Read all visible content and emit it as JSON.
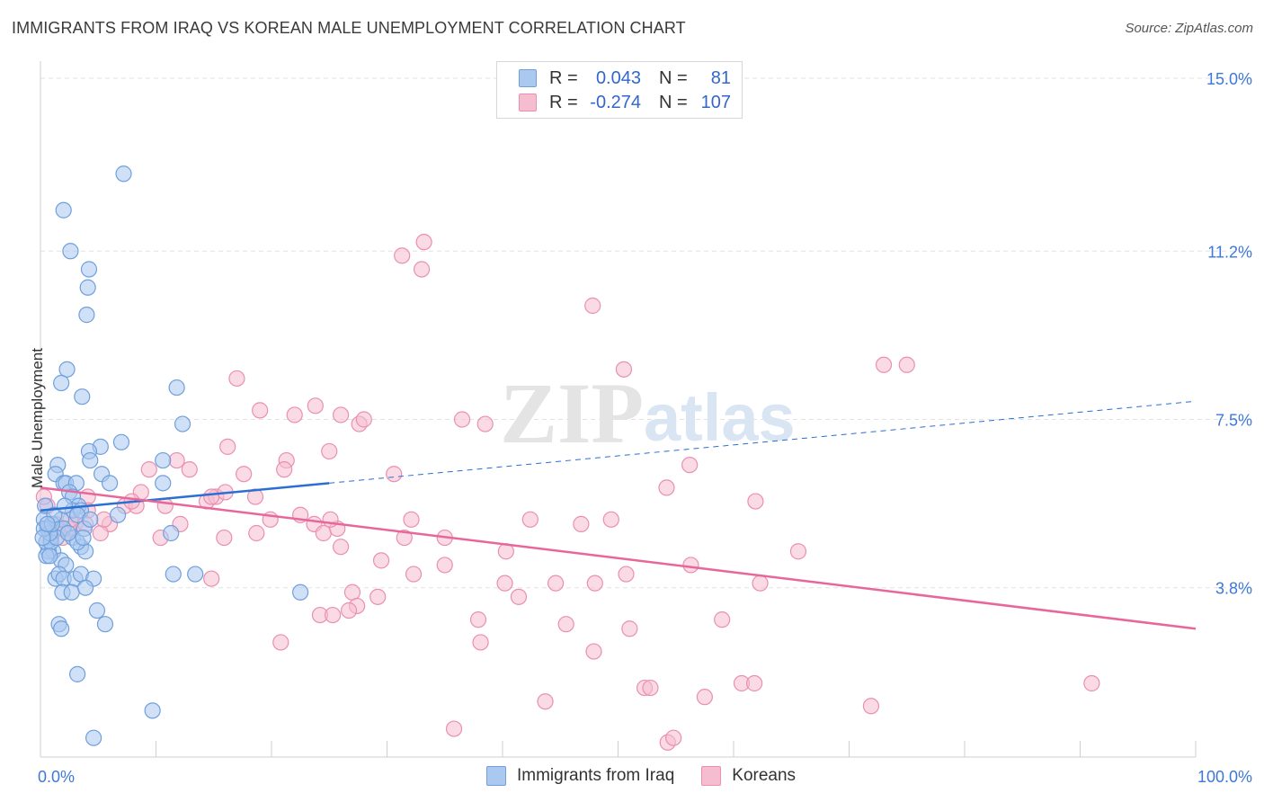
{
  "header": {
    "title": "IMMIGRANTS FROM IRAQ VS KOREAN MALE UNEMPLOYMENT CORRELATION CHART",
    "source": "Source: ZipAtlas.com"
  },
  "legend": {
    "series": [
      {
        "r_label": "R =",
        "r_value": "0.043",
        "n_label": "N =",
        "n_value": "81"
      },
      {
        "r_label": "R =",
        "r_value": "-0.274",
        "n_label": "N =",
        "n_value": "107"
      }
    ]
  },
  "bottom_legend": {
    "item1": "Immigrants from Iraq",
    "item2": "Koreans"
  },
  "watermark": {
    "zip": "ZIP",
    "atlas": "atlas"
  },
  "colors": {
    "blue_fill": "#aac8f0",
    "blue_stroke": "#6f9fdc",
    "blue_line": "#2a6fd1",
    "pink_fill": "#f6bdd0",
    "pink_stroke": "#ea8fb0",
    "pink_line": "#e8679a",
    "tick_label": "#3d78d8",
    "grid": "#e2e2e2"
  },
  "chart_data": {
    "type": "scatter",
    "title": "IMMIGRANTS FROM IRAQ VS KOREAN MALE UNEMPLOYMENT CORRELATION CHART",
    "xlabel": "",
    "ylabel": "Male Unemployment",
    "xlim": [
      0,
      100
    ],
    "ylim": [
      0,
      15.5
    ],
    "x_tick_labels": [
      "0.0%",
      "100.0%"
    ],
    "y_ticks": [
      3.8,
      7.5,
      11.2,
      15.0
    ],
    "y_tick_labels": [
      "3.8%",
      "7.5%",
      "11.2%",
      "15.0%"
    ],
    "grid": true,
    "legend_position": "top-center",
    "series": [
      {
        "name": "Immigrants from Iraq",
        "r": 0.043,
        "n": 81,
        "trend": {
          "x0": 0.0,
          "y0": 5.5,
          "x1": 25.0,
          "y1": 6.1,
          "dashed_to_x": 100.0,
          "dashed_to_y": 7.9
        },
        "points": [
          [
            7.2,
            12.9
          ],
          [
            2.0,
            12.1
          ],
          [
            2.6,
            11.2
          ],
          [
            4.2,
            10.8
          ],
          [
            4.1,
            10.4
          ],
          [
            4.0,
            9.8
          ],
          [
            2.3,
            8.6
          ],
          [
            1.8,
            8.3
          ],
          [
            3.6,
            8.0
          ],
          [
            11.8,
            8.2
          ],
          [
            12.3,
            7.4
          ],
          [
            7.0,
            7.0
          ],
          [
            5.2,
            6.9
          ],
          [
            4.2,
            6.8
          ],
          [
            4.3,
            6.6
          ],
          [
            10.6,
            6.6
          ],
          [
            1.5,
            6.5
          ],
          [
            1.3,
            6.3
          ],
          [
            5.3,
            6.3
          ],
          [
            2.0,
            6.1
          ],
          [
            2.2,
            6.1
          ],
          [
            3.1,
            6.1
          ],
          [
            6.0,
            6.1
          ],
          [
            10.6,
            6.1
          ],
          [
            2.5,
            5.9
          ],
          [
            2.8,
            5.8
          ],
          [
            3.3,
            5.6
          ],
          [
            2.8,
            5.5
          ],
          [
            3.5,
            5.5
          ],
          [
            3.2,
            5.4
          ],
          [
            1.8,
            5.3
          ],
          [
            6.7,
            5.4
          ],
          [
            0.3,
            5.3
          ],
          [
            0.6,
            5.1
          ],
          [
            2.0,
            5.1
          ],
          [
            3.8,
            5.1
          ],
          [
            4.3,
            5.3
          ],
          [
            2.8,
            4.9
          ],
          [
            0.9,
            4.9
          ],
          [
            1.1,
            4.6
          ],
          [
            3.5,
            4.7
          ],
          [
            1.8,
            4.4
          ],
          [
            2.2,
            4.3
          ],
          [
            1.3,
            4.0
          ],
          [
            0.7,
            4.6
          ],
          [
            0.5,
            4.8
          ],
          [
            0.9,
            4.8
          ],
          [
            1.4,
            4.9
          ],
          [
            0.8,
            5.0
          ],
          [
            1.6,
            4.1
          ],
          [
            2.0,
            4.0
          ],
          [
            3.0,
            4.0
          ],
          [
            3.5,
            4.1
          ],
          [
            4.6,
            4.0
          ],
          [
            11.3,
            5.0
          ],
          [
            11.5,
            4.1
          ],
          [
            13.4,
            4.1
          ],
          [
            3.9,
            4.6
          ],
          [
            3.2,
            4.8
          ],
          [
            0.3,
            5.1
          ],
          [
            0.5,
            4.5
          ],
          [
            1.9,
            3.7
          ],
          [
            2.7,
            3.7
          ],
          [
            3.9,
            3.8
          ],
          [
            4.9,
            3.3
          ],
          [
            5.6,
            3.0
          ],
          [
            1.6,
            3.0
          ],
          [
            1.8,
            2.9
          ],
          [
            22.5,
            3.7
          ],
          [
            3.2,
            1.9
          ],
          [
            9.7,
            1.1
          ],
          [
            4.6,
            0.5
          ],
          [
            1.0,
            5.2
          ],
          [
            0.4,
            5.6
          ],
          [
            0.2,
            4.9
          ],
          [
            1.2,
            5.4
          ],
          [
            2.4,
            5.0
          ],
          [
            0.8,
            4.5
          ],
          [
            0.6,
            5.2
          ],
          [
            3.7,
            4.9
          ],
          [
            2.1,
            5.6
          ]
        ]
      },
      {
        "name": "Koreans",
        "r": -0.274,
        "n": 107,
        "trend": {
          "x0": 0.0,
          "y0": 6.0,
          "x1": 100.0,
          "y1": 2.9
        },
        "points": [
          [
            33.2,
            11.4
          ],
          [
            31.3,
            11.1
          ],
          [
            33.0,
            10.8
          ],
          [
            47.8,
            10.0
          ],
          [
            73.0,
            8.7
          ],
          [
            75.0,
            8.7
          ],
          [
            50.5,
            8.6
          ],
          [
            17.0,
            8.4
          ],
          [
            19.0,
            7.7
          ],
          [
            23.8,
            7.8
          ],
          [
            22.0,
            7.6
          ],
          [
            26.0,
            7.6
          ],
          [
            27.6,
            7.4
          ],
          [
            28.0,
            7.5
          ],
          [
            36.5,
            7.5
          ],
          [
            38.5,
            7.4
          ],
          [
            16.2,
            6.9
          ],
          [
            25.0,
            6.8
          ],
          [
            21.3,
            6.6
          ],
          [
            11.8,
            6.6
          ],
          [
            12.9,
            6.4
          ],
          [
            9.4,
            6.4
          ],
          [
            17.6,
            6.3
          ],
          [
            21.1,
            6.4
          ],
          [
            30.6,
            6.3
          ],
          [
            56.2,
            6.5
          ],
          [
            54.2,
            6.0
          ],
          [
            8.7,
            5.9
          ],
          [
            4.1,
            5.8
          ],
          [
            14.4,
            5.7
          ],
          [
            15.2,
            5.8
          ],
          [
            14.8,
            5.8
          ],
          [
            16.0,
            5.9
          ],
          [
            18.6,
            5.8
          ],
          [
            61.9,
            5.7
          ],
          [
            10.8,
            5.6
          ],
          [
            7.3,
            5.6
          ],
          [
            8.3,
            5.6
          ],
          [
            4.1,
            5.5
          ],
          [
            19.9,
            5.3
          ],
          [
            23.7,
            5.2
          ],
          [
            32.1,
            5.3
          ],
          [
            42.4,
            5.3
          ],
          [
            49.4,
            5.3
          ],
          [
            46.8,
            5.2
          ],
          [
            12.1,
            5.2
          ],
          [
            6.0,
            5.2
          ],
          [
            3.0,
            5.2
          ],
          [
            2.4,
            5.1
          ],
          [
            5.2,
            5.0
          ],
          [
            1.9,
            4.9
          ],
          [
            1.5,
            5.1
          ],
          [
            0.9,
            5.0
          ],
          [
            10.4,
            4.9
          ],
          [
            15.9,
            4.9
          ],
          [
            18.7,
            5.0
          ],
          [
            24.5,
            5.0
          ],
          [
            31.5,
            4.9
          ],
          [
            35.0,
            4.9
          ],
          [
            25.7,
            5.1
          ],
          [
            25.1,
            5.3
          ],
          [
            26.0,
            4.7
          ],
          [
            29.5,
            4.4
          ],
          [
            32.3,
            4.1
          ],
          [
            35.0,
            4.3
          ],
          [
            40.3,
            4.6
          ],
          [
            50.7,
            4.1
          ],
          [
            56.3,
            4.3
          ],
          [
            65.6,
            4.6
          ],
          [
            14.8,
            4.0
          ],
          [
            27.0,
            3.7
          ],
          [
            29.2,
            3.6
          ],
          [
            27.4,
            3.4
          ],
          [
            26.7,
            3.3
          ],
          [
            24.2,
            3.2
          ],
          [
            25.3,
            3.2
          ],
          [
            37.9,
            3.1
          ],
          [
            38.1,
            2.6
          ],
          [
            41.4,
            3.6
          ],
          [
            40.2,
            3.9
          ],
          [
            44.6,
            3.9
          ],
          [
            48.0,
            3.9
          ],
          [
            62.3,
            3.9
          ],
          [
            45.5,
            3.0
          ],
          [
            51.0,
            2.9
          ],
          [
            59.0,
            3.1
          ],
          [
            20.8,
            2.6
          ],
          [
            47.9,
            2.4
          ],
          [
            52.3,
            1.6
          ],
          [
            52.8,
            1.6
          ],
          [
            57.5,
            1.4
          ],
          [
            60.7,
            1.7
          ],
          [
            61.8,
            1.7
          ],
          [
            71.9,
            1.2
          ],
          [
            91.0,
            1.7
          ],
          [
            43.7,
            1.3
          ],
          [
            35.8,
            0.7
          ],
          [
            54.3,
            0.4
          ],
          [
            54.8,
            0.5
          ],
          [
            2.6,
            5.3
          ],
          [
            1.3,
            5.2
          ],
          [
            7.9,
            5.7
          ],
          [
            3.9,
            5.2
          ],
          [
            0.6,
            5.6
          ],
          [
            22.5,
            5.4
          ],
          [
            5.5,
            5.3
          ],
          [
            0.3,
            5.8
          ]
        ]
      }
    ]
  }
}
